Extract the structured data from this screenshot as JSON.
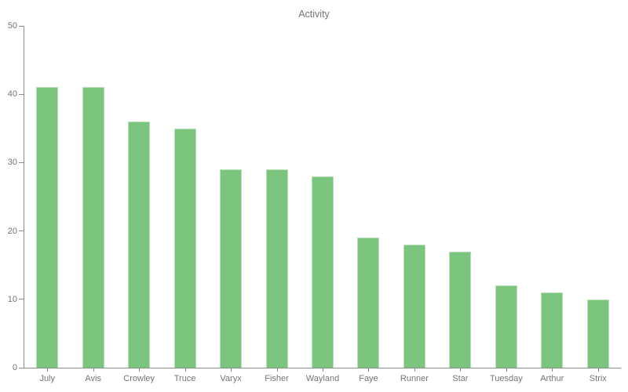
{
  "chart_data": {
    "type": "bar",
    "title": "Activity",
    "categories": [
      "July",
      "Avis",
      "Crowley",
      "Truce",
      "Varyx",
      "Fisher",
      "Wayland",
      "Faye",
      "Runner",
      "Star",
      "Tuesday",
      "Arthur",
      "Strix"
    ],
    "values": [
      41,
      41,
      36,
      35,
      29,
      29,
      28,
      19,
      18,
      17,
      12,
      11,
      10
    ],
    "xlabel": "",
    "ylabel": "",
    "ylim": [
      0,
      50
    ],
    "yticks": [
      0,
      10,
      20,
      30,
      40,
      50
    ],
    "grid": false,
    "legend": false,
    "bar_color": "#7cc57e",
    "axis_color": "#8d8d8d",
    "text_color": "#757575"
  }
}
